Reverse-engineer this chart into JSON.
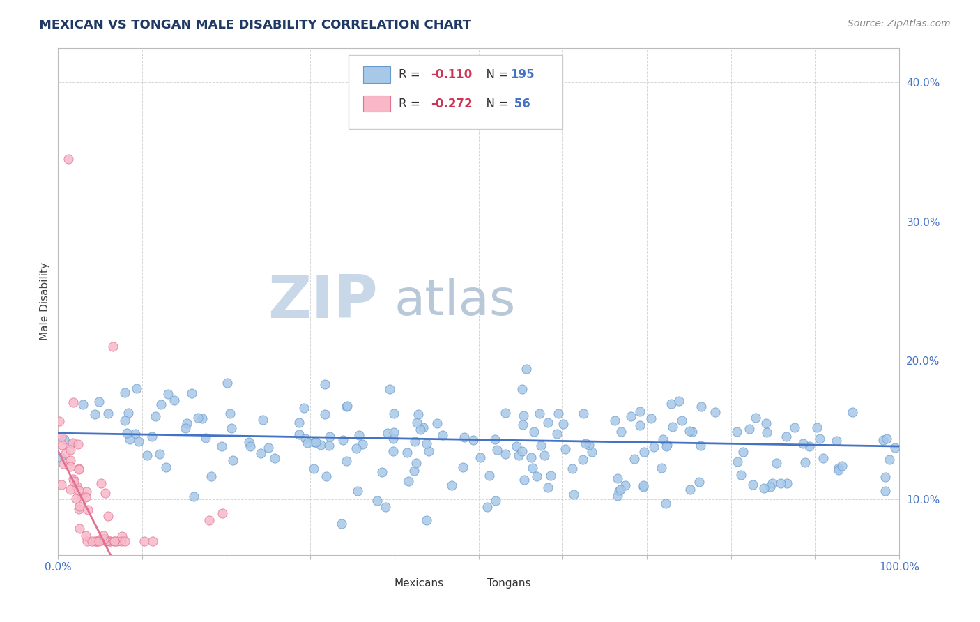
{
  "title": "MEXICAN VS TONGAN MALE DISABILITY CORRELATION CHART",
  "source_text": "Source: ZipAtlas.com",
  "ylabel": "Male Disability",
  "x_min": 0.0,
  "x_max": 1.0,
  "y_min": 0.06,
  "y_max": 0.425,
  "y_ticks": [
    0.1,
    0.2,
    0.3,
    0.4
  ],
  "y_tick_labels": [
    "10.0%",
    "20.0%",
    "30.0%",
    "40.0%"
  ],
  "x_ticks": [
    0.0,
    0.1,
    0.2,
    0.3,
    0.4,
    0.5,
    0.6,
    0.7,
    0.8,
    0.9,
    1.0
  ],
  "x_tick_labels": [
    "0.0%",
    "",
    "",
    "",
    "",
    "",
    "",
    "",
    "",
    "",
    "100.0%"
  ],
  "mexican_color": "#a8c8e8",
  "mexican_edge_color": "#6699cc",
  "tongan_color": "#f8b8c8",
  "tongan_edge_color": "#e07090",
  "mexican_R": -0.11,
  "mexican_N": 195,
  "tongan_R": -0.272,
  "tongan_N": 56,
  "trend_mexican_color": "#4472c4",
  "trend_tongan_color": "#e07090",
  "background_color": "#ffffff",
  "grid_color": "#cccccc",
  "title_color": "#1f3864",
  "watermark_zip_color": "#c8d8e8",
  "watermark_atlas_color": "#b8c8d8",
  "legend_R_color": "#cc3355",
  "legend_N_color": "#4472c4",
  "legend_text_color": "#333333",
  "axis_label_color": "#444444",
  "tick_label_color": "#4472c4",
  "source_color": "#888888"
}
